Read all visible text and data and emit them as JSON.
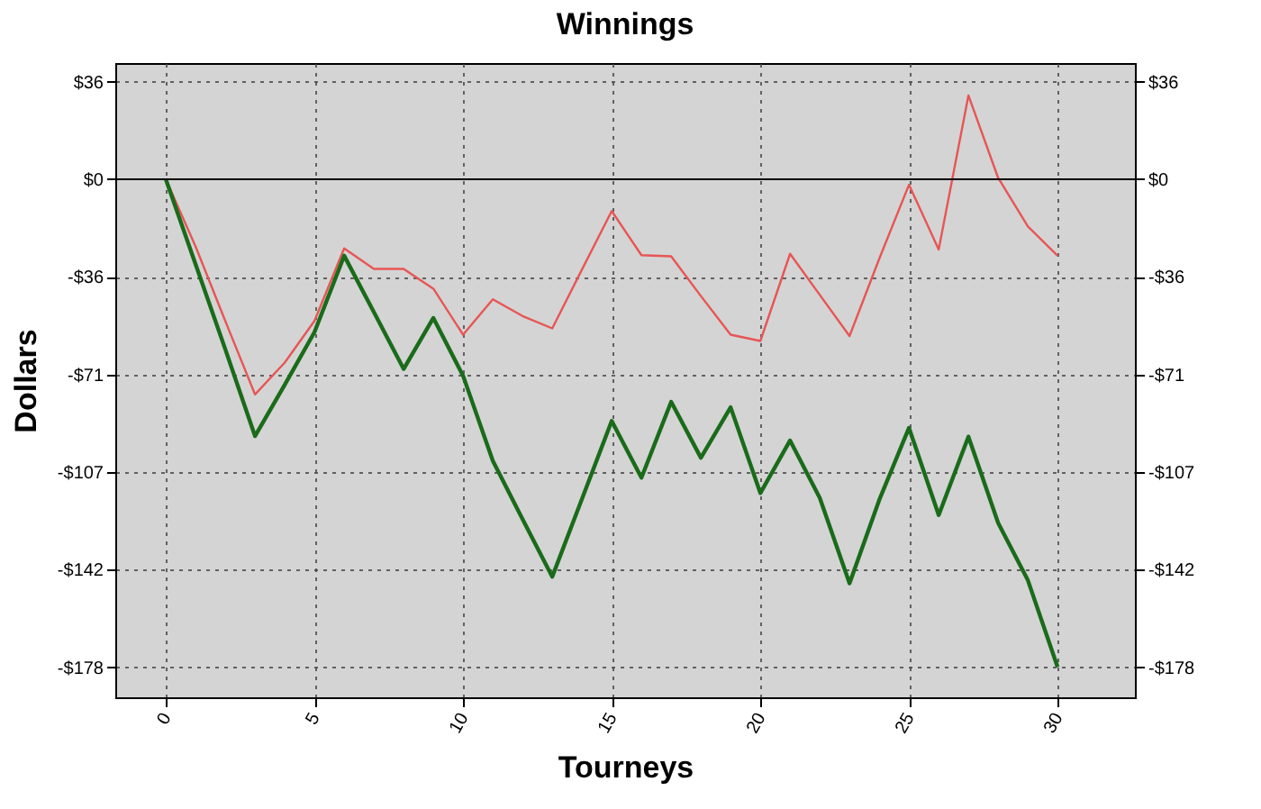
{
  "chart_data": {
    "type": "line",
    "title": "Winnings",
    "xlabel": "Tourneys",
    "ylabel": "Dollars",
    "x": [
      0,
      1,
      2,
      3,
      4,
      5,
      6,
      7,
      8,
      9,
      10,
      11,
      12,
      13,
      14,
      15,
      16,
      17,
      18,
      19,
      20,
      21,
      22,
      23,
      24,
      25,
      26,
      27,
      28,
      29,
      30
    ],
    "series": [
      {
        "color": "#e85555",
        "values": [
          0,
          -24.5,
          -51.7,
          -78.5,
          -66.9,
          -51.7,
          -25.2,
          -32.7,
          -32.7,
          -39.9,
          -56.7,
          -43.8,
          -49.9,
          -54.4,
          -32.9,
          -11.6,
          -27.7,
          -28.1,
          -42.6,
          -56.7,
          -59,
          -27.2,
          -42.2,
          -57.2,
          -29,
          -2,
          -25.6,
          30.6,
          0.5,
          -17.2,
          -27.9
        ]
      },
      {
        "color": "#1a6b1a",
        "values": [
          0,
          -31,
          -62,
          -93.7,
          -75,
          -55.8,
          -27.9,
          -48.5,
          -69.2,
          -50.6,
          -71.7,
          -102.7,
          -124,
          -145,
          -116.6,
          -88.2,
          -108.9,
          -81.2,
          -101.6,
          -83.2,
          -114.5,
          -95.3,
          -116.3,
          -147.4,
          -117,
          -90.7,
          -122.5,
          -93.9,
          -125.4,
          -146.3,
          -178
        ]
      }
    ],
    "xlim": [
      -1.7,
      32.6
    ],
    "xticks": [
      0,
      5,
      10,
      15,
      20,
      25,
      30
    ],
    "ylim": [
      -189,
      42.4
    ],
    "yticks": [
      {
        "value": 35.6,
        "label": "$36"
      },
      {
        "value": 0,
        "label": "$0"
      },
      {
        "value": -35.6,
        "label": "-$36"
      },
      {
        "value": -71.2,
        "label": "-$71"
      },
      {
        "value": -106.8,
        "label": "-$107"
      },
      {
        "value": -142.4,
        "label": "-$142"
      },
      {
        "value": -178,
        "label": "-$178"
      }
    ],
    "y2lim": [
      -189,
      42.4
    ],
    "y2ticks": [
      {
        "value": 35.6,
        "label": "$36"
      },
      {
        "value": 0,
        "label": "$0"
      },
      {
        "value": -35.6,
        "label": "-$36"
      },
      {
        "value": -71.2,
        "label": "-$71"
      },
      {
        "value": -106.8,
        "label": "-$107"
      },
      {
        "value": -142.4,
        "label": "-$142"
      },
      {
        "value": -178,
        "label": "-$178"
      }
    ],
    "ref_lines": [
      {
        "axis": "y",
        "value": 0,
        "color": "#000000"
      }
    ],
    "grid": true,
    "marker": "none",
    "line_style": "solid"
  }
}
